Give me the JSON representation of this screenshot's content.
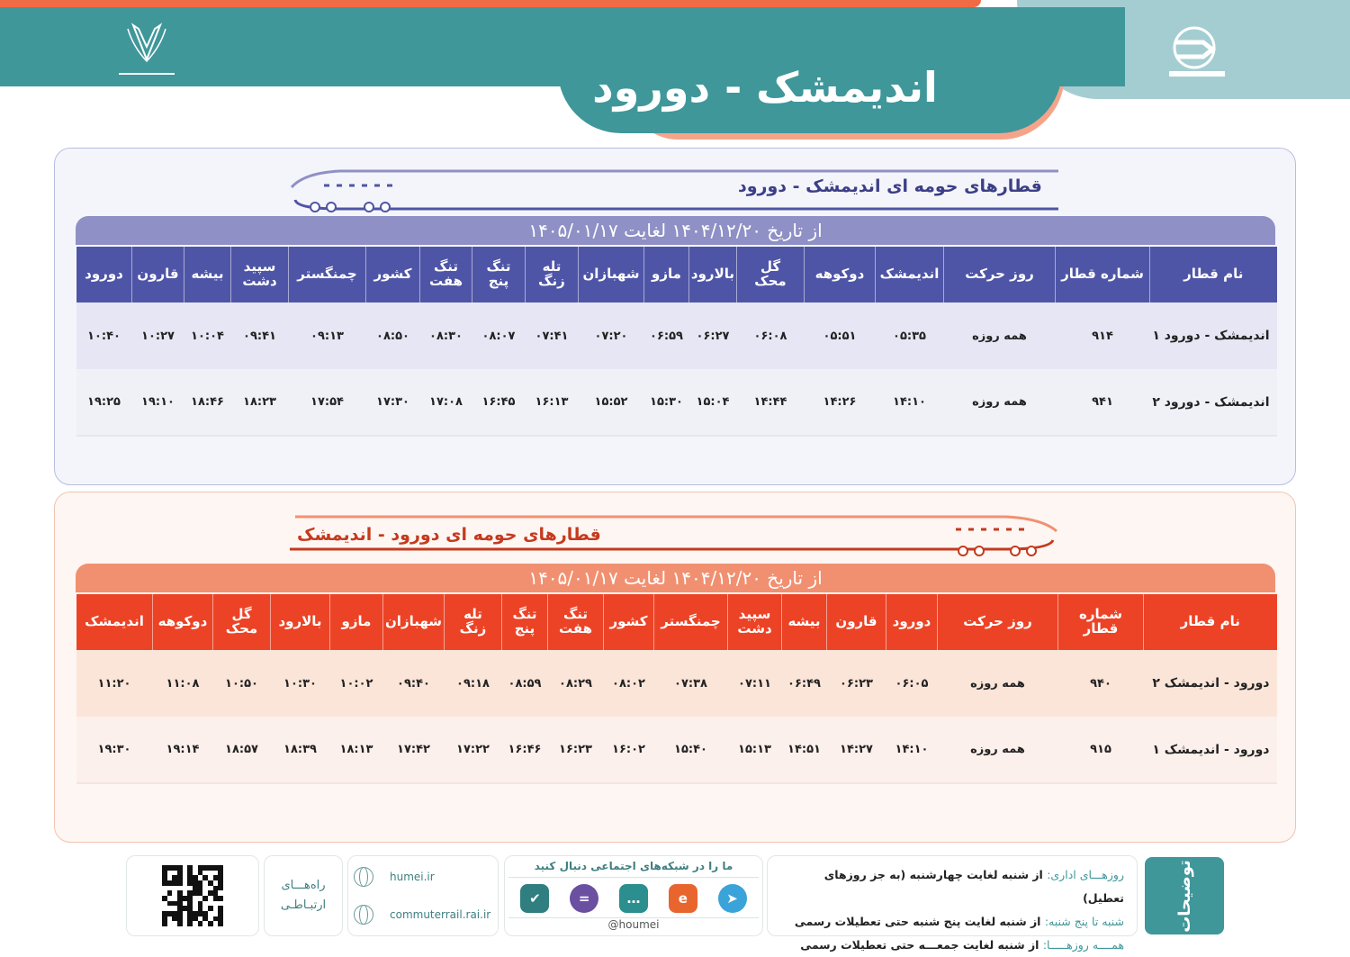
{
  "header": {
    "title": "اندیمشک - دورود",
    "logo_left": "raja-emblem-icon",
    "logo_right": "houmei-train-logo-icon",
    "colors": {
      "teal": "#3f979a",
      "orange": "#ee6b46",
      "light_blue": "#a4cdd2",
      "peach": "#f5a48a"
    }
  },
  "sections": [
    {
      "title": "قطارهای حومه ای اندیمشک - دورود",
      "date_range": "از تاریخ ۱۴۰۴/۱۲/۲۰ لغایت ۱۴۰۵/۰۱/۱۷",
      "accent": "#4f55a6",
      "columns": [
        "نام قطار",
        "شماره قطار",
        "روز حرکت",
        "اندیمشک",
        "دوکوهه",
        "گل محک",
        "بالارود",
        "مازو",
        "شهبازان",
        "تله زنگ",
        "تنگ پنج",
        "تنگ هفت",
        "کشور",
        "چمنگستر",
        "سپید دشت",
        "بیشه",
        "قارون",
        "دورود"
      ],
      "rows": [
        [
          "اندیمشک - دورود ۱",
          "۹۱۴",
          "همه روزه",
          "۰۵:۳۵",
          "۰۵:۵۱",
          "۰۶:۰۸",
          "۰۶:۲۷",
          "۰۶:۵۹",
          "۰۷:۲۰",
          "۰۷:۴۱",
          "۰۸:۰۷",
          "۰۸:۳۰",
          "۰۸:۵۰",
          "۰۹:۱۳",
          "۰۹:۴۱",
          "۱۰:۰۴",
          "۱۰:۲۷",
          "۱۰:۴۰"
        ],
        [
          "اندیمشک - دورود ۲",
          "۹۴۱",
          "همه روزه",
          "۱۴:۱۰",
          "۱۴:۲۶",
          "۱۴:۴۴",
          "۱۵:۰۴",
          "۱۵:۳۰",
          "۱۵:۵۲",
          "۱۶:۱۳",
          "۱۶:۴۵",
          "۱۷:۰۸",
          "۱۷:۳۰",
          "۱۷:۵۴",
          "۱۸:۲۳",
          "۱۸:۴۶",
          "۱۹:۱۰",
          "۱۹:۲۵"
        ]
      ]
    },
    {
      "title": "قطارهای حومه ای دورود - اندیمشک",
      "date_range": "از تاریخ ۱۴۰۴/۱۲/۲۰ لغایت ۱۴۰۵/۰۱/۱۷",
      "accent": "#ec4326",
      "columns": [
        "نام قطار",
        "شماره قطار",
        "روز حرکت",
        "دورود",
        "قارون",
        "بیشه",
        "سپید دشت",
        "چمنگستر",
        "کشور",
        "تنگ هفت",
        "تنگ پنج",
        "تله زنگ",
        "شهبازان",
        "مازو",
        "بالارود",
        "گل محک",
        "دوکوهه",
        "اندیمشک"
      ],
      "rows": [
        [
          "دورود - اندیمشک ۲",
          "۹۴۰",
          "همه روزه",
          "۰۶:۰۵",
          "۰۶:۲۳",
          "۰۶:۴۹",
          "۰۷:۱۱",
          "۰۷:۳۸",
          "۰۸:۰۲",
          "۰۸:۲۹",
          "۰۸:۵۹",
          "۰۹:۱۸",
          "۰۹:۴۰",
          "۱۰:۰۲",
          "۱۰:۳۰",
          "۱۰:۵۰",
          "۱۱:۰۸",
          "۱۱:۲۰"
        ],
        [
          "دورود - اندیمشک ۱",
          "۹۱۵",
          "همه روزه",
          "۱۴:۱۰",
          "۱۴:۲۷",
          "۱۴:۵۱",
          "۱۵:۱۳",
          "۱۵:۴۰",
          "۱۶:۰۲",
          "۱۶:۲۳",
          "۱۶:۴۶",
          "۱۷:۲۲",
          "۱۷:۴۲",
          "۱۸:۱۳",
          "۱۸:۳۹",
          "۱۸:۵۷",
          "۱۹:۱۴",
          "۱۹:۳۰"
        ]
      ]
    }
  ],
  "footer": {
    "notes_label": "توضیحات",
    "notes": [
      {
        "label": "روزهـــای اداری:",
        "text": "از شنبه لغایت چهارشنبه (به جز روزهای تعطیل)"
      },
      {
        "label": "شنبه تا پنج شنبه:",
        "text": "از شنبه لغایت پنج شنبه حتی تعطیلات رسمی"
      },
      {
        "label": "همــــه روزهـــــا:",
        "text": "از شنبه لغایت جمعـــه حتی تعطیلات رسمی"
      }
    ],
    "social_title": "ما را در شبکه‌های اجتماعی دنبال کنید",
    "social_icons": [
      {
        "name": "bale-icon",
        "color": "#2f7f80",
        "glyph": "✔"
      },
      {
        "name": "ita-icon",
        "color": "#6b4fa0",
        "glyph": "="
      },
      {
        "name": "soroush-icon",
        "color": "#2a8f8e",
        "glyph": "…"
      },
      {
        "name": "eitaa-icon",
        "color": "#e9652e",
        "glyph": "e"
      },
      {
        "name": "telegram-icon",
        "color": "#3aa3da",
        "glyph": "➤"
      }
    ],
    "social_handle": "@houmei",
    "links": [
      "humei.ir",
      "commuterrail.rai.ir"
    ],
    "contact_label_1": "راه‌هـــای",
    "contact_label_2": "ارتبـاطـی",
    "qr": "qr-code"
  }
}
